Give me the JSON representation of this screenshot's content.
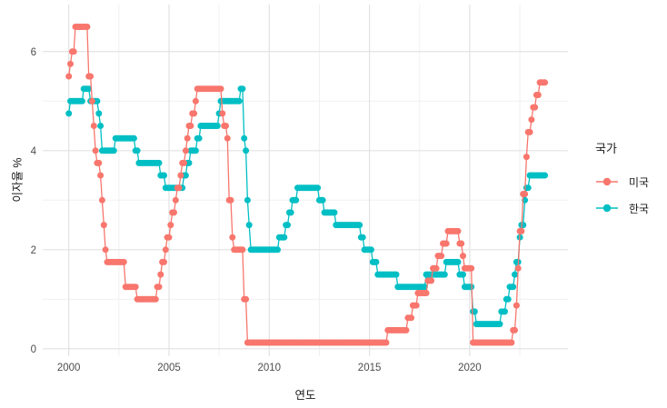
{
  "page": {
    "background": "#FFFFFF"
  },
  "chart_data": {
    "type": "line",
    "title": "",
    "description": "Monthly central-bank policy interest rates, step lines with point markers",
    "x_axis": {
      "label": "연도",
      "major_ticks": [
        2000,
        2005,
        2010,
        2015,
        2020
      ],
      "minor_ticks": [
        2002.5,
        2007.5,
        2012.5,
        2017.5,
        2022.5
      ],
      "range": [
        1998.7,
        2024.9
      ]
    },
    "y_axis": {
      "label": "이자율 %",
      "major_ticks": [
        0,
        2,
        4,
        6
      ],
      "minor_ticks": [
        1,
        3,
        5
      ],
      "range": [
        -0.15,
        6.95
      ]
    },
    "legend": {
      "title": "국가",
      "position": "right",
      "entries": [
        {
          "label": "미국",
          "color": "#F8766D"
        },
        {
          "label": "한국",
          "color": "#00BFC4"
        }
      ]
    },
    "grid": {
      "major_color": "#E2E2E2",
      "minor_color": "#F0F0F0"
    },
    "text_colors": {
      "tick_label": "#4D4D4D",
      "axis_title": "#1A1A1A"
    },
    "marker": {
      "point_radius": 3.5,
      "line_width": 1.3
    },
    "series": [
      {
        "name": "한국",
        "color": "#00BFC4",
        "start": 2000.0,
        "end": 2023.79,
        "frequency": "monthly",
        "rate_changes": [
          [
            2000.0,
            4.75
          ],
          [
            2000.083,
            5.0
          ],
          [
            2000.75,
            5.25
          ],
          [
            2001.083,
            5.0
          ],
          [
            2001.5,
            4.75
          ],
          [
            2001.583,
            4.5
          ],
          [
            2001.667,
            4.0
          ],
          [
            2002.333,
            4.25
          ],
          [
            2003.333,
            4.0
          ],
          [
            2003.5,
            3.75
          ],
          [
            2004.583,
            3.5
          ],
          [
            2004.833,
            3.25
          ],
          [
            2005.75,
            3.5
          ],
          [
            2005.917,
            3.75
          ],
          [
            2006.083,
            4.0
          ],
          [
            2006.417,
            4.25
          ],
          [
            2006.583,
            4.5
          ],
          [
            2007.5,
            4.75
          ],
          [
            2007.583,
            5.0
          ],
          [
            2008.583,
            5.25
          ],
          [
            2008.75,
            4.25
          ],
          [
            2008.833,
            4.0
          ],
          [
            2008.917,
            3.0
          ],
          [
            2009.0,
            2.5
          ],
          [
            2009.083,
            2.0
          ],
          [
            2010.5,
            2.25
          ],
          [
            2010.833,
            2.5
          ],
          [
            2011.0,
            2.75
          ],
          [
            2011.167,
            3.0
          ],
          [
            2011.417,
            3.25
          ],
          [
            2012.5,
            3.0
          ],
          [
            2012.75,
            2.75
          ],
          [
            2013.333,
            2.5
          ],
          [
            2014.583,
            2.25
          ],
          [
            2014.75,
            2.0
          ],
          [
            2015.167,
            1.75
          ],
          [
            2015.417,
            1.5
          ],
          [
            2016.417,
            1.25
          ],
          [
            2017.833,
            1.5
          ],
          [
            2018.833,
            1.75
          ],
          [
            2019.5,
            1.5
          ],
          [
            2019.75,
            1.25
          ],
          [
            2020.167,
            0.75
          ],
          [
            2020.333,
            0.5
          ],
          [
            2021.583,
            0.75
          ],
          [
            2021.833,
            1.0
          ],
          [
            2022.0,
            1.25
          ],
          [
            2022.25,
            1.5
          ],
          [
            2022.333,
            1.75
          ],
          [
            2022.5,
            2.25
          ],
          [
            2022.583,
            2.5
          ],
          [
            2022.75,
            3.0
          ],
          [
            2022.833,
            3.25
          ],
          [
            2023.0,
            3.5
          ]
        ]
      },
      {
        "name": "미국",
        "color": "#F8766D",
        "start": 2000.0,
        "end": 2023.79,
        "frequency": "monthly",
        "rate_changes": [
          [
            2000.0,
            5.5
          ],
          [
            2000.083,
            5.75
          ],
          [
            2000.167,
            6.0
          ],
          [
            2000.333,
            6.5
          ],
          [
            2001.0,
            5.5
          ],
          [
            2001.167,
            5.0
          ],
          [
            2001.25,
            4.5
          ],
          [
            2001.333,
            4.0
          ],
          [
            2001.417,
            3.75
          ],
          [
            2001.583,
            3.5
          ],
          [
            2001.667,
            3.0
          ],
          [
            2001.75,
            2.5
          ],
          [
            2001.833,
            2.0
          ],
          [
            2001.917,
            1.75
          ],
          [
            2002.833,
            1.25
          ],
          [
            2003.417,
            1.0
          ],
          [
            2004.417,
            1.25
          ],
          [
            2004.583,
            1.5
          ],
          [
            2004.667,
            1.75
          ],
          [
            2004.833,
            2.0
          ],
          [
            2004.917,
            2.25
          ],
          [
            2005.083,
            2.5
          ],
          [
            2005.167,
            2.75
          ],
          [
            2005.333,
            3.0
          ],
          [
            2005.417,
            3.25
          ],
          [
            2005.583,
            3.5
          ],
          [
            2005.667,
            3.75
          ],
          [
            2005.833,
            4.0
          ],
          [
            2005.917,
            4.25
          ],
          [
            2006.0,
            4.5
          ],
          [
            2006.167,
            4.75
          ],
          [
            2006.333,
            5.0
          ],
          [
            2006.417,
            5.25
          ],
          [
            2007.667,
            4.75
          ],
          [
            2007.75,
            4.5
          ],
          [
            2007.917,
            4.25
          ],
          [
            2008.0,
            3.0
          ],
          [
            2008.167,
            2.25
          ],
          [
            2008.25,
            2.0
          ],
          [
            2008.75,
            1.0
          ],
          [
            2008.917,
            0.125
          ],
          [
            2015.917,
            0.375
          ],
          [
            2016.917,
            0.625
          ],
          [
            2017.167,
            0.875
          ],
          [
            2017.417,
            1.125
          ],
          [
            2017.917,
            1.375
          ],
          [
            2018.167,
            1.625
          ],
          [
            2018.417,
            1.875
          ],
          [
            2018.667,
            2.125
          ],
          [
            2018.917,
            2.375
          ],
          [
            2019.5,
            2.125
          ],
          [
            2019.667,
            1.875
          ],
          [
            2019.75,
            1.625
          ],
          [
            2020.167,
            0.125
          ],
          [
            2022.167,
            0.375
          ],
          [
            2022.333,
            0.875
          ],
          [
            2022.417,
            1.625
          ],
          [
            2022.5,
            2.375
          ],
          [
            2022.667,
            3.125
          ],
          [
            2022.833,
            3.875
          ],
          [
            2022.917,
            4.375
          ],
          [
            2023.083,
            4.625
          ],
          [
            2023.167,
            4.875
          ],
          [
            2023.333,
            5.125
          ],
          [
            2023.5,
            5.375
          ]
        ]
      }
    ]
  }
}
